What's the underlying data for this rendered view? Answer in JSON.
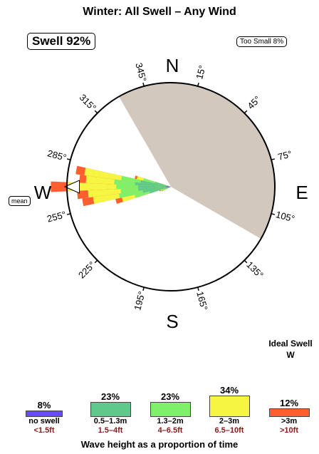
{
  "title": "Winter: All Swell – Any Wind",
  "swell_badge": "Swell 92%",
  "too_small_badge": "Too Small 8%",
  "mean_label": "mean",
  "ideal": {
    "label": "Ideal Swell",
    "direction": "W"
  },
  "footer": "Wave height as a proportion of time",
  "colors": {
    "no_swell": "#6a4cff",
    "band1": "#5ec98a",
    "band2": "#7ef06a",
    "band3": "#f5f542",
    "band4": "#ff5e2e",
    "shadow": "#d2c8be"
  },
  "chart_data": {
    "type": "rose",
    "cardinals": [
      "N",
      "E",
      "S",
      "W"
    ],
    "direction_ticks": [
      "15°",
      "45°",
      "75°",
      "105°",
      "135°",
      "165°",
      "195°",
      "225°",
      "255°",
      "285°",
      "315°",
      "345°"
    ],
    "tick_angles": [
      15,
      45,
      75,
      105,
      135,
      165,
      195,
      225,
      255,
      285,
      315,
      345
    ],
    "shadow_sector": [
      330,
      120
    ],
    "mean_direction": 270,
    "series": [
      {
        "name": "no swell",
        "values_m": "",
        "values_ft": "<1.5ft",
        "percent": "8%",
        "color_key": "no_swell"
      },
      {
        "name": "",
        "values_m": "0.5–1.3m",
        "values_ft": "1.5–4ft",
        "percent": "23%",
        "color_key": "band1"
      },
      {
        "name": "",
        "values_m": "1.3–2m",
        "values_ft": "4–6.5ft",
        "percent": "23%",
        "color_key": "band2"
      },
      {
        "name": "",
        "values_m": "2–3m",
        "values_ft": "6.5–10ft",
        "percent": "34%",
        "color_key": "band3"
      },
      {
        "name": "",
        "values_m": ">3m",
        "values_ft": ">10ft",
        "percent": "12%",
        "color_key": "band4"
      }
    ],
    "legend_fractions": [
      0.08,
      0.23,
      0.23,
      0.34,
      0.12
    ],
    "petals": [
      {
        "dir": 270,
        "bands": [
          0.06,
          0.3,
          0.5,
          0.95,
          1.1
        ]
      },
      {
        "dir": 275,
        "bands": [
          0.05,
          0.33,
          0.52,
          0.78,
          0.84
        ]
      },
      {
        "dir": 265,
        "bands": [
          0.05,
          0.3,
          0.46,
          0.76,
          0.86
        ]
      },
      {
        "dir": 280,
        "bands": [
          0.04,
          0.28,
          0.46,
          0.8,
          0.88
        ]
      },
      {
        "dir": 260,
        "bands": [
          0.04,
          0.26,
          0.48,
          0.72,
          0.82
        ]
      },
      {
        "dir": 285,
        "bands": [
          0.03,
          0.15,
          0.26,
          0.32,
          0.34
        ]
      },
      {
        "dir": 255,
        "bands": [
          0.03,
          0.2,
          0.34,
          0.46,
          0.52
        ]
      },
      {
        "dir": 250,
        "bands": [
          0.02,
          0.05,
          0.08,
          0.1,
          0.11
        ]
      },
      {
        "dir": 245,
        "bands": [
          0.02,
          0.04,
          0.07,
          0.08,
          0.09
        ]
      }
    ]
  },
  "legend": [
    {
      "percent": "8%",
      "label_m": "no swell",
      "label_ft": "<1.5ft"
    },
    {
      "percent": "23%",
      "label_m": "0.5–1.3m",
      "label_ft": "1.5–4ft"
    },
    {
      "percent": "23%",
      "label_m": "1.3–2m",
      "label_ft": "4–6.5ft"
    },
    {
      "percent": "34%",
      "label_m": "2–3m",
      "label_ft": "6.5–10ft"
    },
    {
      "percent": "12%",
      "label_m": ">3m",
      "label_ft": ">10ft"
    }
  ]
}
